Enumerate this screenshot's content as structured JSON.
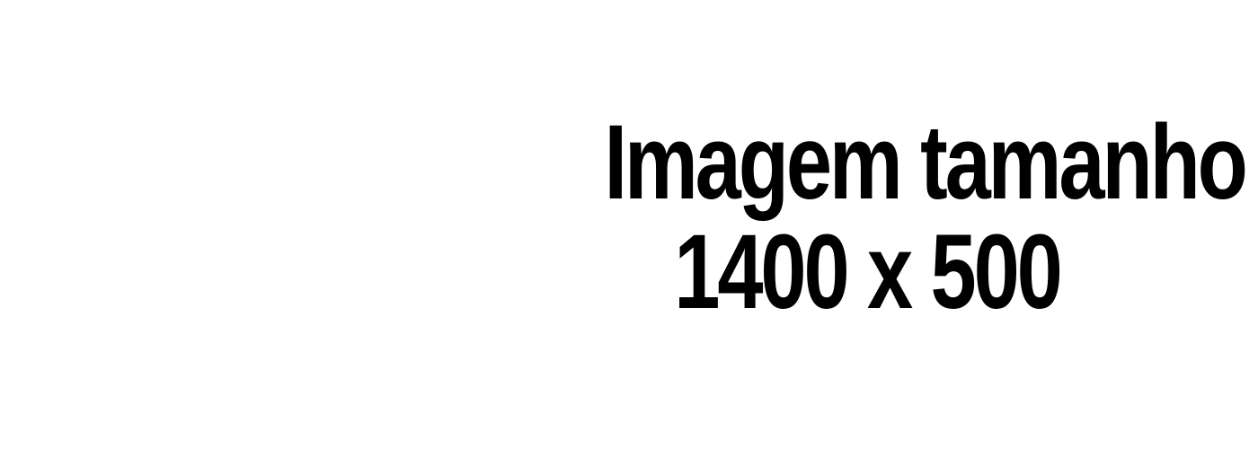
{
  "placeholder": {
    "line1": "Imagem tamanho",
    "line2": "1400 x 500"
  },
  "colors": {
    "background": "#ffffff",
    "text": "#000000"
  }
}
